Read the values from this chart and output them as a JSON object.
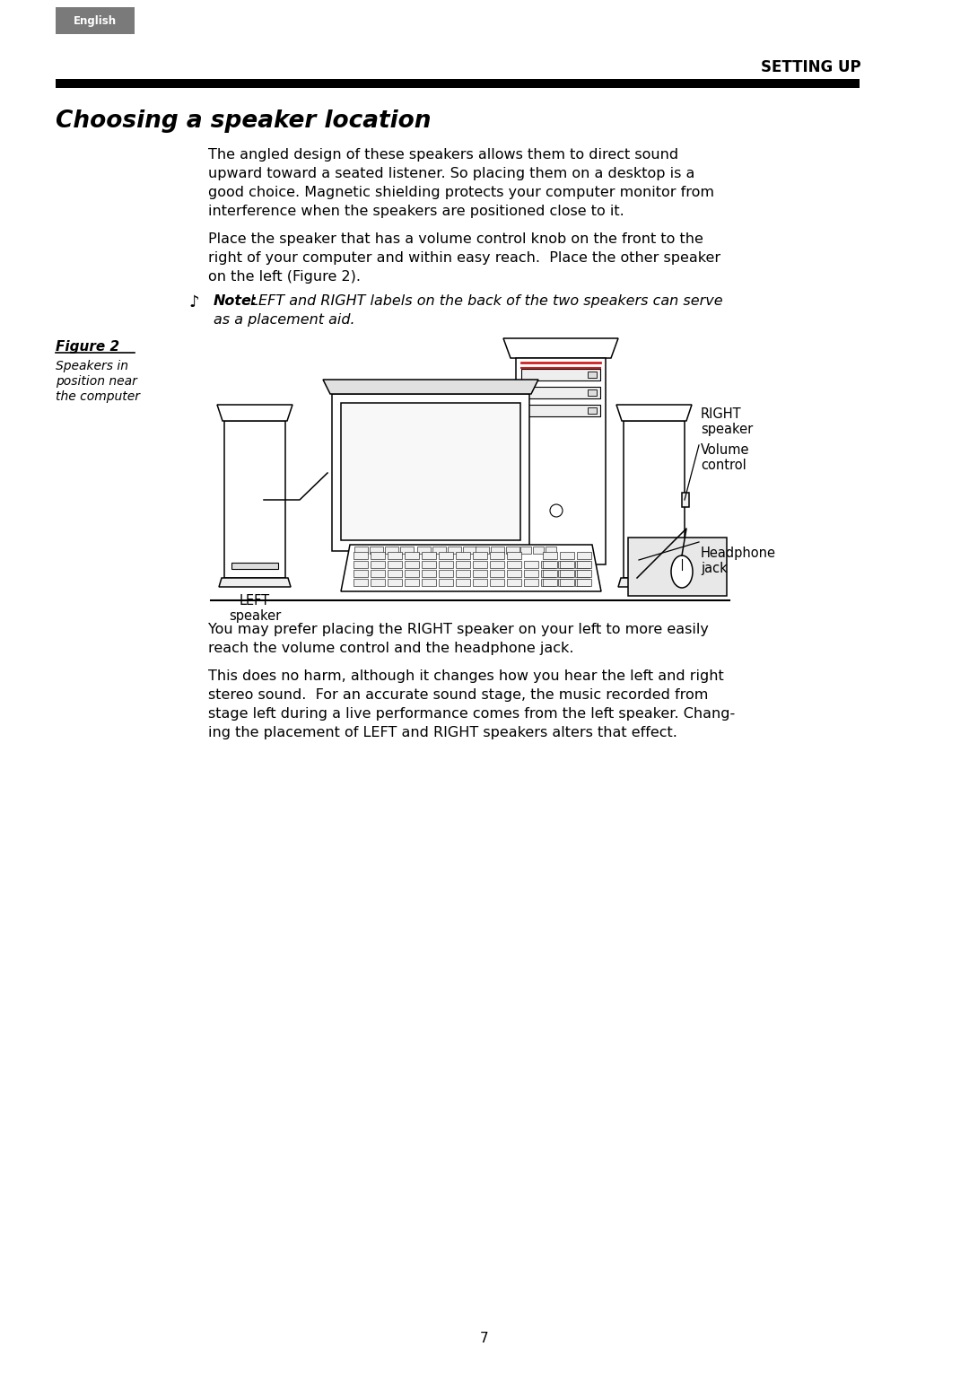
{
  "page_bg": "#ffffff",
  "english_badge_bg": "#7a7a7a",
  "english_badge_text": "English",
  "english_badge_color": "#ffffff",
  "section_title_display": "SETTING UP",
  "divider_color": "#000000",
  "chapter_title": "Choosing a speaker location",
  "para1_lines": [
    "The angled design of these speakers allows them to direct sound",
    "upward toward a seated listener. So placing them on a desktop is a",
    "good choice. Magnetic shielding protects your computer monitor from",
    "interference when the speakers are positioned close to it."
  ],
  "para2_lines": [
    "Place the speaker that has a volume control knob on the front to the",
    "right of your computer and within easy reach.  Place the other speaker",
    "on the left (Figure 2)."
  ],
  "note_icon": "♪",
  "note_bold": "Note:",
  "note_italic1": " LEFT and RIGHT labels on the back of the two speakers can serve",
  "note_italic2": "as a placement aid.",
  "figure_label": "Figure 2",
  "figure_caption_lines": [
    "Speakers in",
    "position near",
    "the computer"
  ],
  "label_left": "LEFT\nspeaker",
  "label_right": "RIGHT\nspeaker",
  "label_volume": "Volume\ncontrol",
  "label_headphone": "Headphone\njack",
  "para3_lines": [
    "You may prefer placing the RIGHT speaker on your left to more easily",
    "reach the volume control and the headphone jack."
  ],
  "para4_lines": [
    "This does no harm, although it changes how you hear the left and right",
    "stereo sound.  For an accurate sound stage, the music recorded from",
    "stage left during a live performance comes from the left speaker. Chang-",
    "ing the placement of LEFT and RIGHT speakers alters that effect."
  ],
  "page_number": "7",
  "text_color": "#000000",
  "line_color": "#000000"
}
